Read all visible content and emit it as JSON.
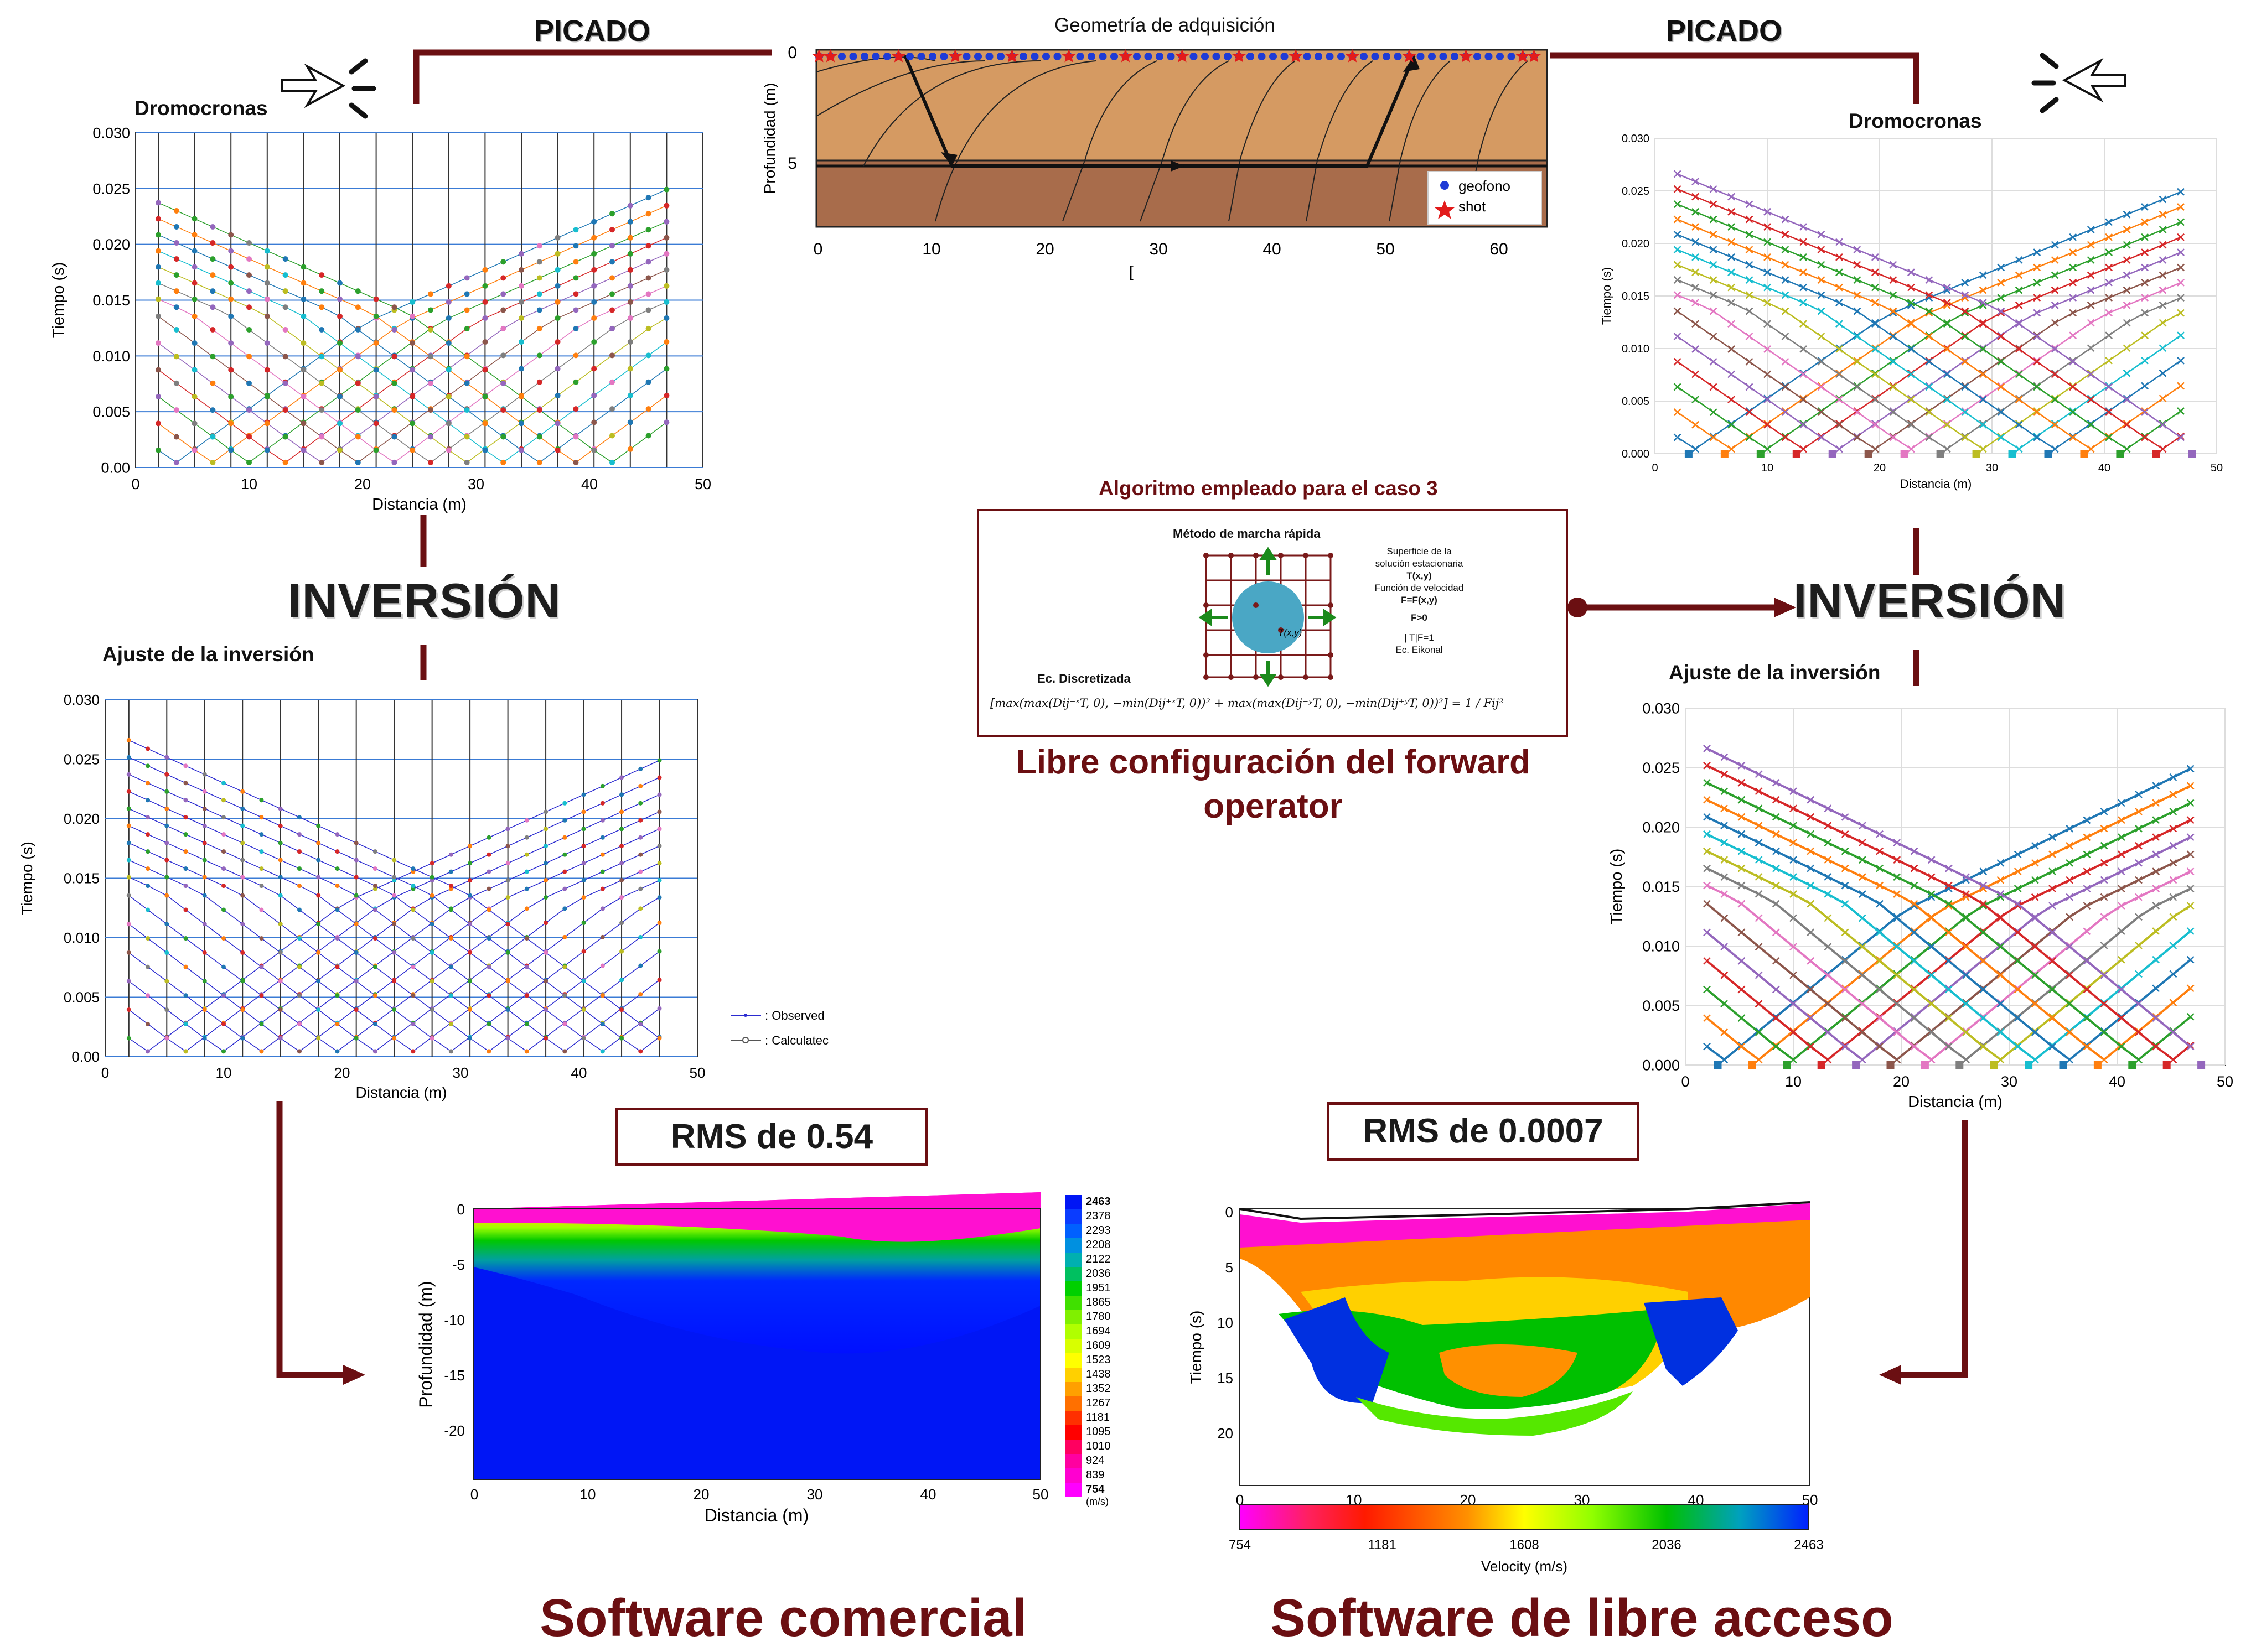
{
  "headers": {
    "picado_left": "PICADO",
    "picado_right": "PICADO"
  },
  "inversion": {
    "left": "INVERSIÓN",
    "right": "INVERSIÓN"
  },
  "panels": {
    "dromo_left_title": "Dromocronas",
    "dromo_right_title": "Dromocronas",
    "fit_left_title": "Ajuste de la inversión",
    "fit_right_title": "Ajuste de la inversión"
  },
  "geometry": {
    "title": "Geometría de adquisición",
    "ylabel": "Profundidad (m)",
    "xlabel": "[",
    "legend_geofono": "geofono",
    "legend_shot": "shot",
    "xticks": [
      "0",
      "10",
      "20",
      "30",
      "40",
      "50",
      "60"
    ],
    "yticks": [
      "0",
      "5"
    ]
  },
  "axes": {
    "tiempo": "Tiempo (s)",
    "distancia": "Distancia (m)",
    "profundidad": "Profundidad (m)",
    "tiempo_inv": "Tiempo (s)",
    "velocity": "Velocity (m/s)"
  },
  "ticks": {
    "time_y": [
      "0.030",
      "0.025",
      "0.020",
      "0.015",
      "0.010",
      "0.005",
      "0.00"
    ],
    "time_y_right": [
      "0.030",
      "0.025",
      "0.020",
      "0.015",
      "0.010",
      "0.005",
      "0.000"
    ],
    "dist_x": [
      "0",
      "10",
      "20",
      "30",
      "40",
      "50"
    ],
    "depth_left": [
      "0",
      "-5",
      "-10",
      "-15",
      "-20"
    ],
    "depth_right": [
      "0",
      "5",
      "10",
      "15",
      "20"
    ]
  },
  "legend_fit": {
    "observed": ": Observed",
    "calculated": ": Calculatec"
  },
  "algorithm": {
    "title": "Algoritmo empleado para el caso 3",
    "method": "Método de marcha rápida",
    "surface1": "Superficie de la",
    "surface2": "solución estacionaria",
    "surface3": "T(x,y)",
    "vel1": "Función de velocidad",
    "vel2": "F=F(x,y)",
    "cond": "F>0",
    "eik1": "|   T|F=1",
    "eik2": "Ec. Eikonal",
    "node": "T(x,y)",
    "discrete": "Ec. Discretizada",
    "equation": "[max(max(Dij⁻ˣT, 0), −min(Dij⁺ˣT, 0))² + max(max(Dij⁻ʸT, 0), −min(Dij⁺ʸT, 0))²] = 1 / Fij²"
  },
  "free_config": {
    "line1": "Libre configuración del forward",
    "line2": "operator"
  },
  "rms": {
    "left": "RMS de 0.54",
    "right": "RMS de 0.0007"
  },
  "colorbar": {
    "unit": "(m/s)",
    "values": [
      "2463",
      "2378",
      "2293",
      "2208",
      "2122",
      "2036",
      "1951",
      "1865",
      "1780",
      "1694",
      "1609",
      "1523",
      "1438",
      "1352",
      "1267",
      "1181",
      "1095",
      "1010",
      "924",
      "839",
      "754"
    ],
    "horizontal_ticks": [
      "754",
      "1181",
      "1608",
      "2036",
      "2463"
    ]
  },
  "bottom": {
    "left": "Software comercial",
    "right": "Software de libre acceso"
  },
  "colors": {
    "maroon": "#6b0f12",
    "soil_upper": "#d59a62",
    "soil_lower": "#a86c4b"
  }
}
